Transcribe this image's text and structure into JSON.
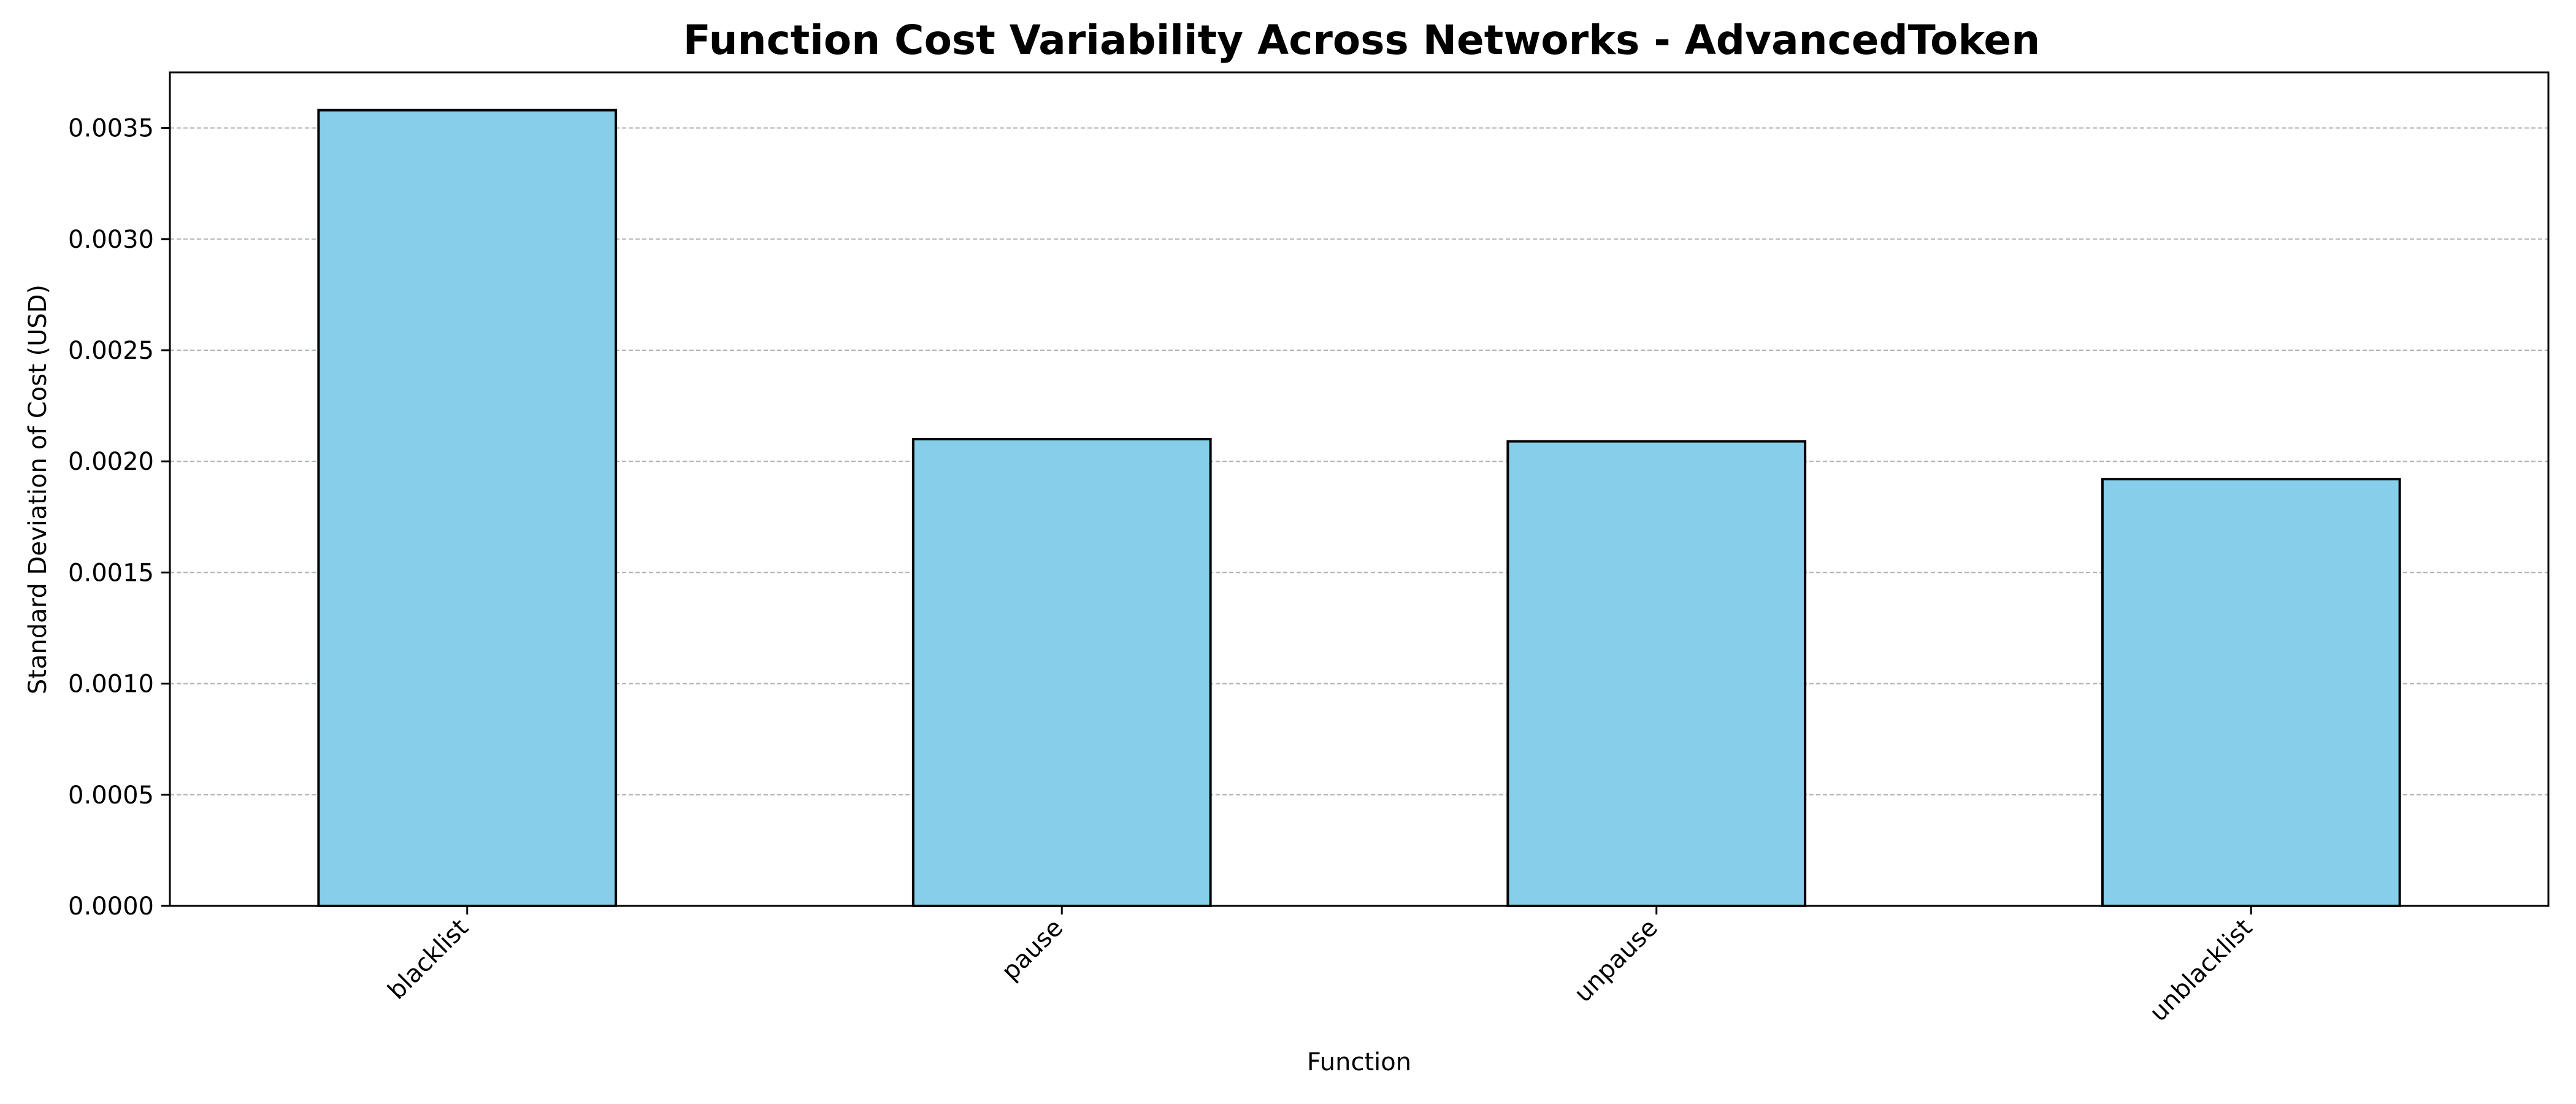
{
  "chart_data": {
    "type": "bar",
    "title": "Function Cost Variability Across Networks - AdvancedToken",
    "xlabel": "Function",
    "ylabel": "Standard Deviation of Cost (USD)",
    "categories": [
      "blacklist",
      "pause",
      "unpause",
      "unblacklist"
    ],
    "values": [
      0.00358,
      0.0021,
      0.00209,
      0.00192
    ],
    "ylim": [
      0,
      0.00375
    ],
    "yticks": [
      0.0,
      0.0005,
      0.001,
      0.0015,
      0.002,
      0.0025,
      0.003,
      0.0035
    ],
    "ytick_labels": [
      "0.0000",
      "0.0005",
      "0.0010",
      "0.0015",
      "0.0020",
      "0.0025",
      "0.0030",
      "0.0035"
    ],
    "grid": "y-dashed",
    "legend": "none",
    "colors": {
      "bar_fill": "#87ceeb",
      "bar_edge": "#000000",
      "grid": "#b0b0b0"
    }
  }
}
